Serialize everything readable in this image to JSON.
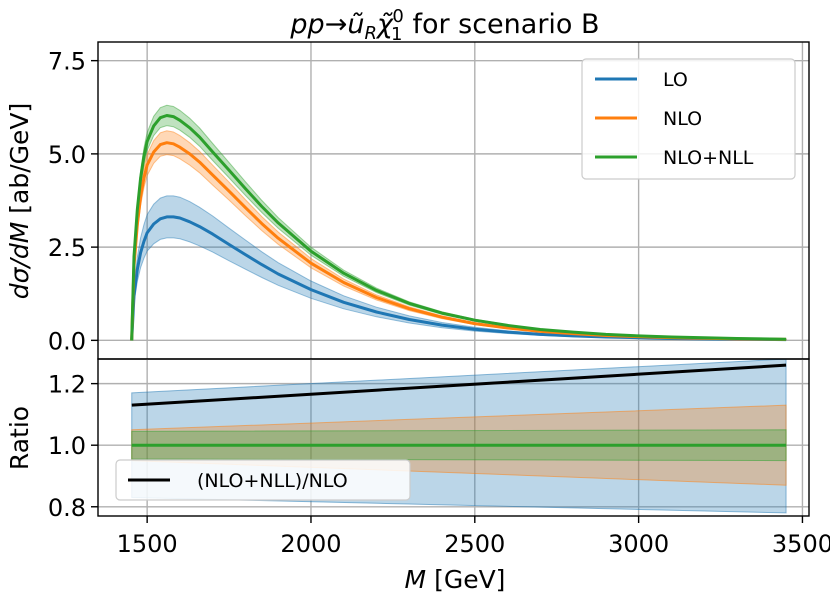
{
  "chart_data": {
    "type": "line",
    "title": "pp→ũRχ̃1⁰ for scenario B",
    "title_parts": {
      "process": "pp→",
      "squark": "ũ",
      "squark_sub": "R",
      "neutralino": "χ̃",
      "neutralino_sub": "1",
      "neutralino_sup": "0",
      "rest": " for scenario B"
    },
    "xlabel": "M [GeV]",
    "xlabel_parts": {
      "var": "M",
      "unit": " [GeV]"
    },
    "xlim": [
      1350,
      3520
    ],
    "xticks": [
      1500,
      2000,
      2500,
      3000,
      3500
    ],
    "top_panel": {
      "ylabel": "dσ/dM [ab/GeV]",
      "ylabel_parts": {
        "var": "dσ/dM",
        "unit": " [ab/GeV]"
      },
      "ylim": [
        -0.5,
        8.0
      ],
      "yticks": [
        "0.0",
        "2.5",
        "5.0",
        "7.5"
      ],
      "grid": true,
      "legend_position": "top-right",
      "x": [
        1453,
        1460,
        1470,
        1480,
        1490,
        1500,
        1520,
        1540,
        1560,
        1580,
        1600,
        1630,
        1660,
        1700,
        1750,
        1800,
        1850,
        1900,
        2000,
        2100,
        2200,
        2300,
        2400,
        2500,
        2600,
        2700,
        2800,
        2900,
        3000,
        3100,
        3200,
        3300,
        3450
      ],
      "series": [
        {
          "name": "LO",
          "color": "#1f77b4",
          "values": [
            0.0,
            1.2,
            1.9,
            2.35,
            2.65,
            2.88,
            3.12,
            3.26,
            3.31,
            3.31,
            3.28,
            3.18,
            3.05,
            2.85,
            2.57,
            2.3,
            2.03,
            1.78,
            1.36,
            1.02,
            0.76,
            0.56,
            0.41,
            0.3,
            0.22,
            0.16,
            0.12,
            0.09,
            0.07,
            0.05,
            0.04,
            0.03,
            0.02
          ],
          "band_rel": 0.17
        },
        {
          "name": "NLO",
          "color": "#ff7f0e",
          "values": [
            0.0,
            2.0,
            3.1,
            3.85,
            4.35,
            4.7,
            5.05,
            5.25,
            5.3,
            5.27,
            5.18,
            5.0,
            4.78,
            4.43,
            4.0,
            3.56,
            3.13,
            2.74,
            2.07,
            1.55,
            1.15,
            0.85,
            0.62,
            0.45,
            0.33,
            0.24,
            0.18,
            0.13,
            0.1,
            0.075,
            0.055,
            0.04,
            0.025
          ],
          "band_rel": 0.06
        },
        {
          "name": "NLO+NLL",
          "color": "#2ca02c",
          "values": [
            0.0,
            2.25,
            3.5,
            4.35,
            4.93,
            5.33,
            5.75,
            5.97,
            6.03,
            6.0,
            5.9,
            5.7,
            5.45,
            5.05,
            4.56,
            4.07,
            3.59,
            3.15,
            2.39,
            1.8,
            1.34,
            0.99,
            0.73,
            0.54,
            0.4,
            0.29,
            0.22,
            0.16,
            0.12,
            0.09,
            0.07,
            0.05,
            0.03
          ],
          "band_rel": 0.045
        }
      ],
      "legend": [
        "LO",
        "NLO",
        "NLO+NLL"
      ]
    },
    "bottom_panel": {
      "ylabel": "Ratio",
      "ylim": [
        0.77,
        1.28
      ],
      "yticks": [
        "0.8",
        "1.0",
        "1.2"
      ],
      "grid": true,
      "legend_position": "bottom-left",
      "x_range": [
        1453,
        3450
      ],
      "bands": [
        {
          "name": "LO scale band",
          "color": "#1f77b4",
          "lower": [
            0.83,
            0.78
          ],
          "upper": [
            1.17,
            1.28
          ]
        },
        {
          "name": "NLO scale band",
          "color": "#ff7f0e",
          "lower": [
            0.95,
            0.87
          ],
          "upper": [
            1.05,
            1.13
          ]
        },
        {
          "name": "NLO+NLL scale band",
          "color": "#2ca02c",
          "lower": [
            0.955,
            0.95
          ],
          "upper": [
            1.045,
            1.05
          ]
        }
      ],
      "lines": [
        {
          "name": "ratio line",
          "color": "#2ca02c",
          "values": [
            1.0,
            1.0
          ]
        },
        {
          "name": "(NLO+NLL)/NLO",
          "color": "#000000",
          "values": [
            1.13,
            1.26
          ]
        }
      ],
      "legend": [
        "(NLO+NLL)/NLO"
      ]
    }
  }
}
